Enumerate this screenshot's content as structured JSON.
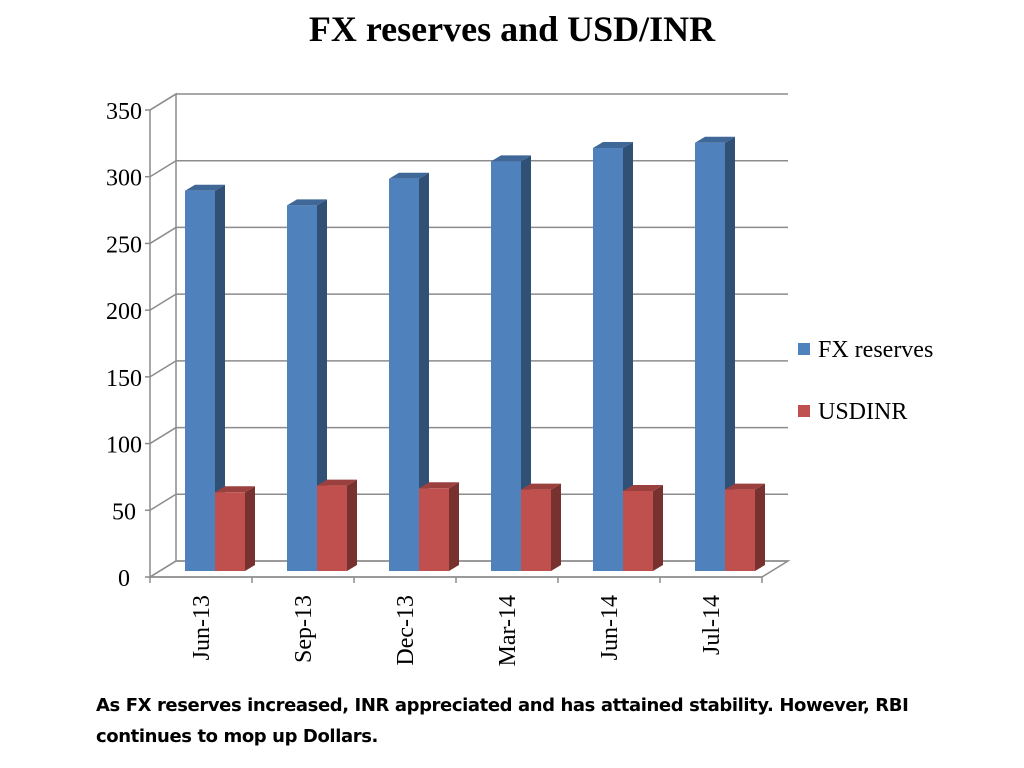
{
  "slide": {
    "title": "FX reserves and USD/INR",
    "caption": "As FX  reserves  increased, INR appreciated and has attained stability. However, RBI continues to mop up Dollars."
  },
  "chart_data": {
    "type": "bar",
    "title": "FX reserves and USD/INR",
    "xlabel": "",
    "ylabel": "",
    "categories": [
      "Jun-13",
      "Sep-13",
      "Dec-13",
      "Mar-14",
      "Jun-14",
      "Jul-14"
    ],
    "series": [
      {
        "name": "FX reserves",
        "values": [
          285,
          274,
          294,
          307,
          317,
          321
        ],
        "color": "#4F81BD"
      },
      {
        "name": "USDINR",
        "values": [
          59,
          64,
          62,
          61,
          60,
          61
        ],
        "color": "#C0504D"
      }
    ],
    "ylim": [
      0,
      350
    ],
    "yticks": [
      "0",
      "50",
      "100",
      "150",
      "200",
      "250",
      "300",
      "350"
    ],
    "grid": true,
    "legend_placement": "right",
    "style": "3d-clustered-column"
  }
}
